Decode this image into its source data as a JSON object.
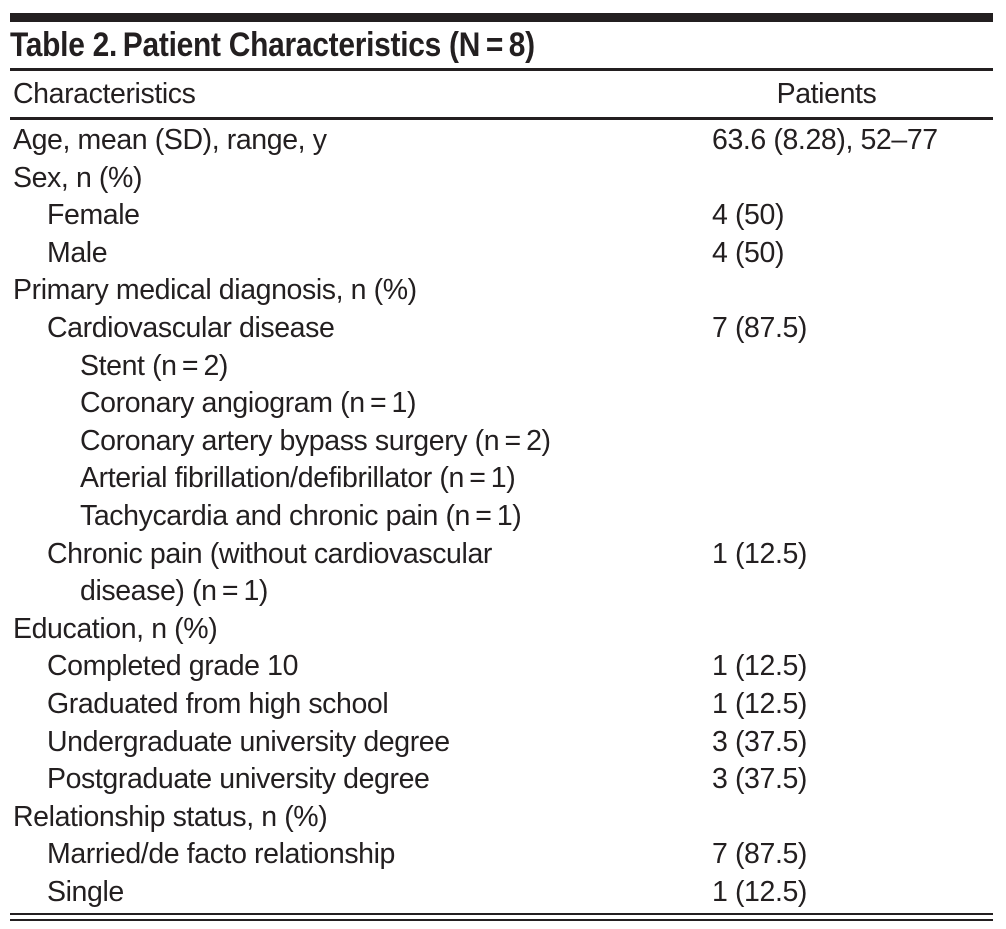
{
  "table": {
    "title": "Table 2. Patient Characteristics (N = 8)",
    "columns": {
      "characteristics": "Characteristics",
      "patients": "Patients"
    },
    "rows": [
      {
        "indent": 0,
        "label": "Age, mean (SD), range, y",
        "value": "63.6 (8.28), 52–77"
      },
      {
        "indent": 0,
        "label": "Sex, n (%)",
        "value": ""
      },
      {
        "indent": 1,
        "label": "Female",
        "value": "4 (50)"
      },
      {
        "indent": 1,
        "label": "Male",
        "value": "4 (50)"
      },
      {
        "indent": 0,
        "label": "Primary medical diagnosis, n (%)",
        "value": ""
      },
      {
        "indent": 1,
        "label": "Cardiovascular disease",
        "value": "7 (87.5)"
      },
      {
        "indent": 2,
        "label": "Stent (n = 2)",
        "value": ""
      },
      {
        "indent": 2,
        "label": "Coronary angiogram (n = 1)",
        "value": ""
      },
      {
        "indent": 2,
        "label": "Coronary artery bypass surgery (n = 2)",
        "value": ""
      },
      {
        "indent": 2,
        "label": "Arterial fibrillation/defibrillator (n = 1)",
        "value": ""
      },
      {
        "indent": 2,
        "label": "Tachycardia and chronic pain (n = 1)",
        "value": ""
      },
      {
        "indent": 1,
        "label": "Chronic pain (without cardiovascular",
        "label2": "disease) (n = 1)",
        "value": "1 (12.5)"
      },
      {
        "indent": 0,
        "label": "Education, n (%)",
        "value": ""
      },
      {
        "indent": 1,
        "label": "Completed grade 10",
        "value": "1 (12.5)"
      },
      {
        "indent": 1,
        "label": "Graduated from high school",
        "value": "1 (12.5)"
      },
      {
        "indent": 1,
        "label": "Undergraduate university degree",
        "value": "3 (37.5)"
      },
      {
        "indent": 1,
        "label": "Postgraduate university degree",
        "value": "3 (37.5)"
      },
      {
        "indent": 0,
        "label": "Relationship status, n (%)",
        "value": ""
      },
      {
        "indent": 1,
        "label": "Married/de facto relationship",
        "value": "7 (87.5)"
      },
      {
        "indent": 1,
        "label": "Single",
        "value": "1 (12.5)"
      }
    ],
    "stats": {
      "n_total": 8,
      "age_mean": 63.6,
      "age_sd": 8.28,
      "age_range": "52–77"
    },
    "colors": {
      "text": "#231f20",
      "rule": "#231f20",
      "background": "#ffffff"
    }
  }
}
